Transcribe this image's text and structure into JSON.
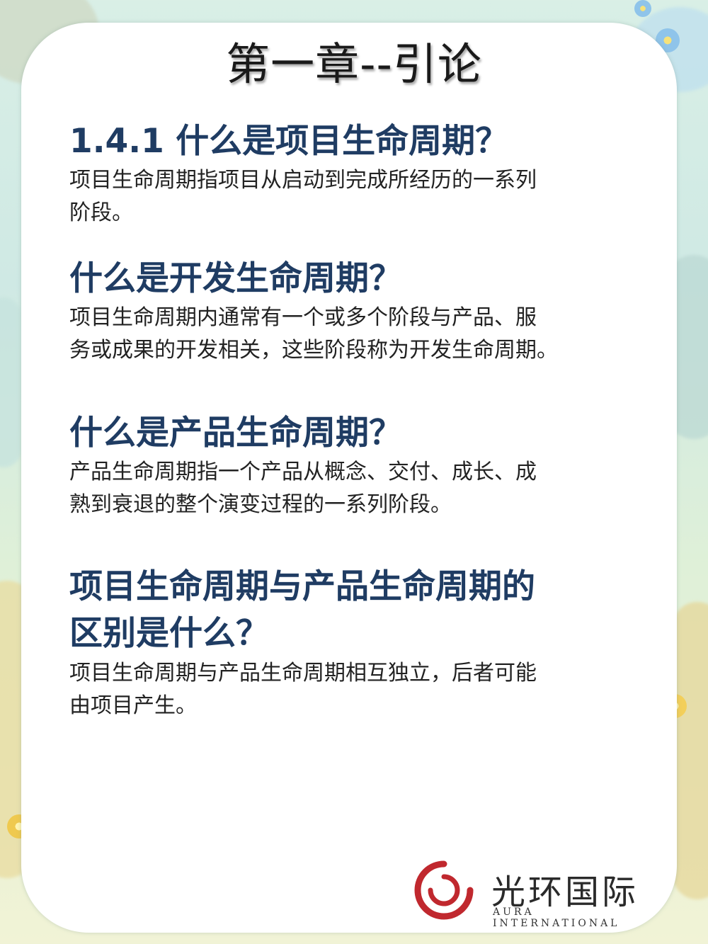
{
  "chapter_title": "第一章--引论",
  "sections": [
    {
      "heading": "1.4.1  什么是项目生命周期？",
      "body_lines": [
        "项目生命周期指项目从启动到完成所经历的一系列",
        "阶段。"
      ]
    },
    {
      "heading": "什么是开发生命周期？",
      "body_lines": [
        "项目生命周期内通常有一个或多个阶段与产品、服",
        "务或成果的开发相关，这些阶段称为开发生命周期。"
      ]
    },
    {
      "heading": "什么是产品生命周期？",
      "body_lines": [
        "产品生命周期指一个产品从概念、交付、成长、成",
        "熟到衰退的整个演变过程的一系列阶段。"
      ]
    },
    {
      "heading_lines": [
        "项目生命周期与产品生命周期的",
        "区别是什么？"
      ],
      "body_lines": [
        "项目生命周期与产品生命周期相互独立，后者可能",
        "由项目产生。"
      ]
    }
  ],
  "logo": {
    "name_cn": "光环国际",
    "name_en": "AURA INTERNATIONAL",
    "mark_color": "#c0282e"
  }
}
